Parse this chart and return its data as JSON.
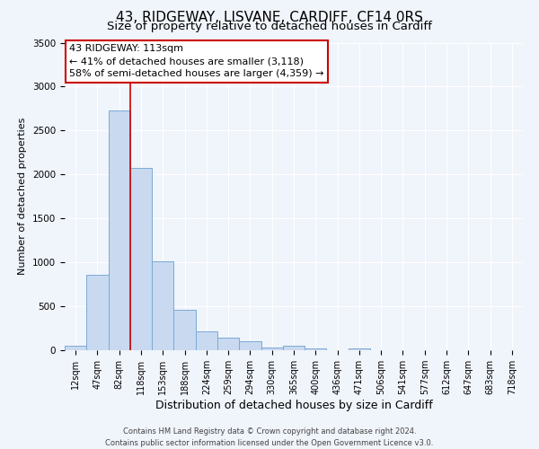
{
  "title": "43, RIDGEWAY, LISVANE, CARDIFF, CF14 0RS",
  "subtitle": "Size of property relative to detached houses in Cardiff",
  "xlabel": "Distribution of detached houses by size in Cardiff",
  "ylabel": "Number of detached properties",
  "categories": [
    "12sqm",
    "47sqm",
    "82sqm",
    "118sqm",
    "153sqm",
    "188sqm",
    "224sqm",
    "259sqm",
    "294sqm",
    "330sqm",
    "365sqm",
    "400sqm",
    "436sqm",
    "471sqm",
    "506sqm",
    "541sqm",
    "577sqm",
    "612sqm",
    "647sqm",
    "683sqm",
    "718sqm"
  ],
  "bar_heights": [
    55,
    855,
    2730,
    2075,
    1010,
    455,
    210,
    145,
    100,
    30,
    55,
    20,
    0,
    20,
    0,
    0,
    0,
    0,
    0,
    0,
    0
  ],
  "bar_color": "#c9d9f0",
  "bar_edge_color": "#7aaad4",
  "vline_color": "#cc0000",
  "ylim": [
    0,
    3500
  ],
  "yticks": [
    0,
    500,
    1000,
    1500,
    2000,
    2500,
    3000,
    3500
  ],
  "annotation_line1": "43 RIDGEWAY: 113sqm",
  "annotation_line2": "← 41% of detached houses are smaller (3,118)",
  "annotation_line3": "58% of semi-detached houses are larger (4,359) →",
  "footer_line1": "Contains HM Land Registry data © Crown copyright and database right 2024.",
  "footer_line2": "Contains public sector information licensed under the Open Government Licence v3.0.",
  "background_color": "#f0f4fb",
  "plot_bg_color": "#f0f4fb",
  "grid_color": "#ffffff",
  "title_fontsize": 11,
  "subtitle_fontsize": 9.5,
  "xlabel_fontsize": 9,
  "ylabel_fontsize": 8,
  "tick_fontsize": 7,
  "footer_fontsize": 6,
  "annot_fontsize": 8
}
